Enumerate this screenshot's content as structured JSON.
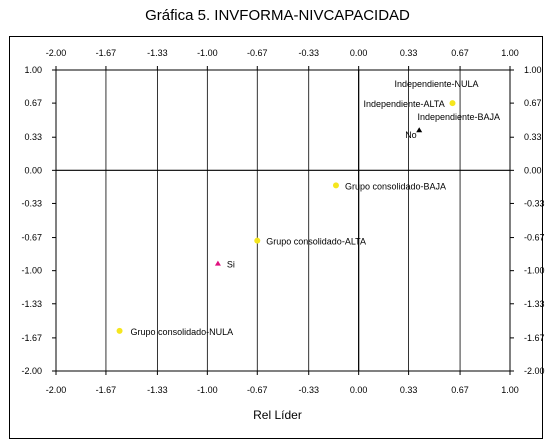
{
  "chart_data": {
    "type": "scatter",
    "title": "Gráfica 5. INVFORMA-NIVCAPACIDAD",
    "xlabel": "Rel Líder",
    "ylabel": "",
    "xlim": [
      -2.0,
      1.0
    ],
    "ylim": [
      -2.0,
      1.0
    ],
    "x_ticks": [
      "-2.00",
      "-1.67",
      "-1.33",
      "-1.00",
      "-0.67",
      "-0.33",
      "0.00",
      "0.33",
      "0.67",
      "1.00"
    ],
    "y_ticks": [
      "1.00",
      "0.67",
      "0.33",
      "0.00",
      "-0.33",
      "-0.67",
      "-1.00",
      "-1.33",
      "-1.67",
      "-2.00"
    ],
    "grid": "vertical",
    "points": [
      {
        "label": "Independiente-NULA",
        "x": 0.62,
        "y": 0.67,
        "marker": "circle",
        "color": "#f5e61e"
      },
      {
        "label": "Independiente-ALTA",
        "x": 0.62,
        "y": 0.67,
        "marker": "circle",
        "color": "#f5e61e"
      },
      {
        "label": "Independiente-BAJA",
        "x": 0.62,
        "y": 0.67,
        "marker": "circle",
        "color": "#f5e61e"
      },
      {
        "label": "No",
        "x": 0.4,
        "y": 0.4,
        "marker": "triangle",
        "color": "#000000"
      },
      {
        "label": "Grupo consolidado-BAJA",
        "x": -0.15,
        "y": -0.15,
        "marker": "circle",
        "color": "#f5e61e"
      },
      {
        "label": "Grupo consolidado-ALTA",
        "x": -0.67,
        "y": -0.7,
        "marker": "circle",
        "color": "#f5e61e"
      },
      {
        "label": "Si",
        "x": -0.93,
        "y": -0.93,
        "marker": "triangle",
        "color": "#e0117f"
      },
      {
        "label": "Grupo consolidado-NULA",
        "x": -1.58,
        "y": -1.6,
        "marker": "circle",
        "color": "#f5e61e"
      }
    ]
  }
}
